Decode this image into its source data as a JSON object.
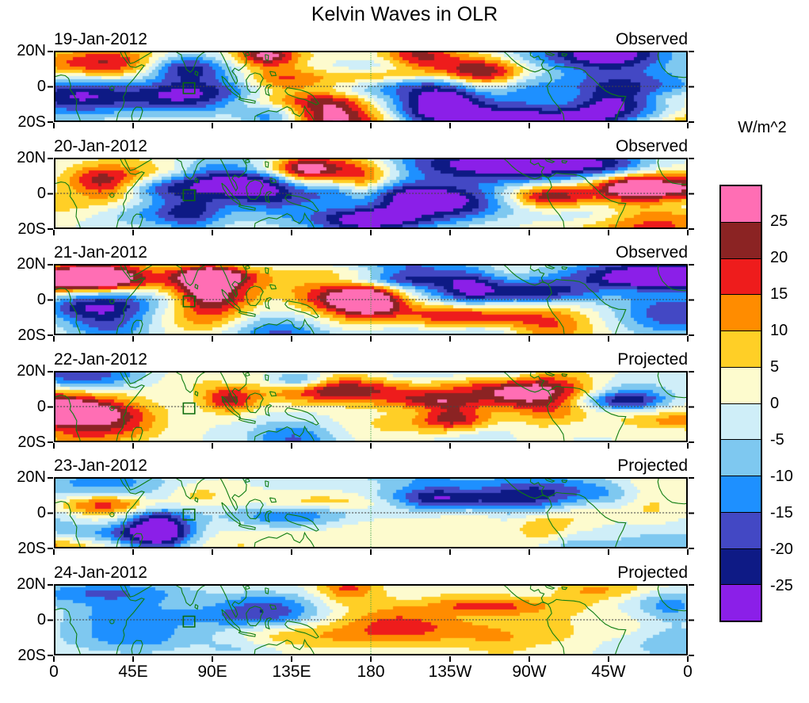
{
  "title": "Kelvin Waves in OLR",
  "colorbar": {
    "unit": "W/m^2",
    "labels": [
      "25",
      "20",
      "15",
      "10",
      "5",
      "0",
      "-5",
      "-10",
      "-15",
      "-20",
      "-25"
    ],
    "colors_top_to_bottom": [
      "#ff6eb4",
      "#8b2323",
      "#ee1c1c",
      "#ff8c00",
      "#ffcf26",
      "#fdfbce",
      "#cfeef8",
      "#7ec8f0",
      "#1e90ff",
      "#4348c4",
      "#0e1a85",
      "#8b1fe8"
    ]
  },
  "x_axis": {
    "tick_labels": [
      "0",
      "45E",
      "90E",
      "135E",
      "180",
      "135W",
      "90W",
      "45W",
      "0"
    ]
  },
  "y_axis": {
    "tick_labels": [
      "20N",
      "0",
      "20S"
    ]
  },
  "panels": [
    {
      "date": "19-Jan-2012",
      "type": "Observed"
    },
    {
      "date": "20-Jan-2012",
      "type": "Observed"
    },
    {
      "date": "21-Jan-2012",
      "type": "Observed"
    },
    {
      "date": "22-Jan-2012",
      "type": "Projected"
    },
    {
      "date": "23-Jan-2012",
      "type": "Projected"
    },
    {
      "date": "24-Jan-2012",
      "type": "Projected"
    }
  ],
  "map": {
    "coastline_color": "#0f7d12",
    "target_box_region": "around 75E on the equator"
  },
  "chart_data": {
    "type": "heatmap",
    "title": "Kelvin Waves in OLR",
    "units": "W/m^2",
    "x_axis": {
      "label": "longitude",
      "tick_labels": [
        "0",
        "45E",
        "90E",
        "135E",
        "180",
        "135W",
        "90W",
        "45W",
        "0"
      ],
      "range_deg": [
        0,
        360
      ]
    },
    "y_axis": {
      "label": "latitude",
      "tick_labels": [
        "20N",
        "0",
        "20S"
      ],
      "range_deg": [
        20,
        -20
      ]
    },
    "contour_levels": [
      -25,
      -20,
      -15,
      -10,
      -5,
      0,
      5,
      10,
      15,
      20,
      25
    ],
    "palette_top_to_bottom": [
      "#ff6eb4",
      "#8b2323",
      "#ee1c1c",
      "#ff8c00",
      "#ffcf26",
      "#fdfbce",
      "#cfeef8",
      "#7ec8f0",
      "#1e90ff",
      "#4348c4",
      "#0e1a85",
      "#8b1fe8"
    ],
    "panels": [
      {
        "date": "19-Jan-2012",
        "type": "Observed"
      },
      {
        "date": "20-Jan-2012",
        "type": "Observed"
      },
      {
        "date": "21-Jan-2012",
        "type": "Observed"
      },
      {
        "date": "22-Jan-2012",
        "type": "Projected"
      },
      {
        "date": "23-Jan-2012",
        "type": "Projected"
      },
      {
        "date": "24-Jan-2012",
        "type": "Projected"
      }
    ],
    "description": "Six daily equatorial (20N-20S) longitude-latitude maps of filled OLR anomaly contours (Kelvin-wave filtered), first three observed, last three projected; anomaly amplitude weakens in the projected panels."
  }
}
